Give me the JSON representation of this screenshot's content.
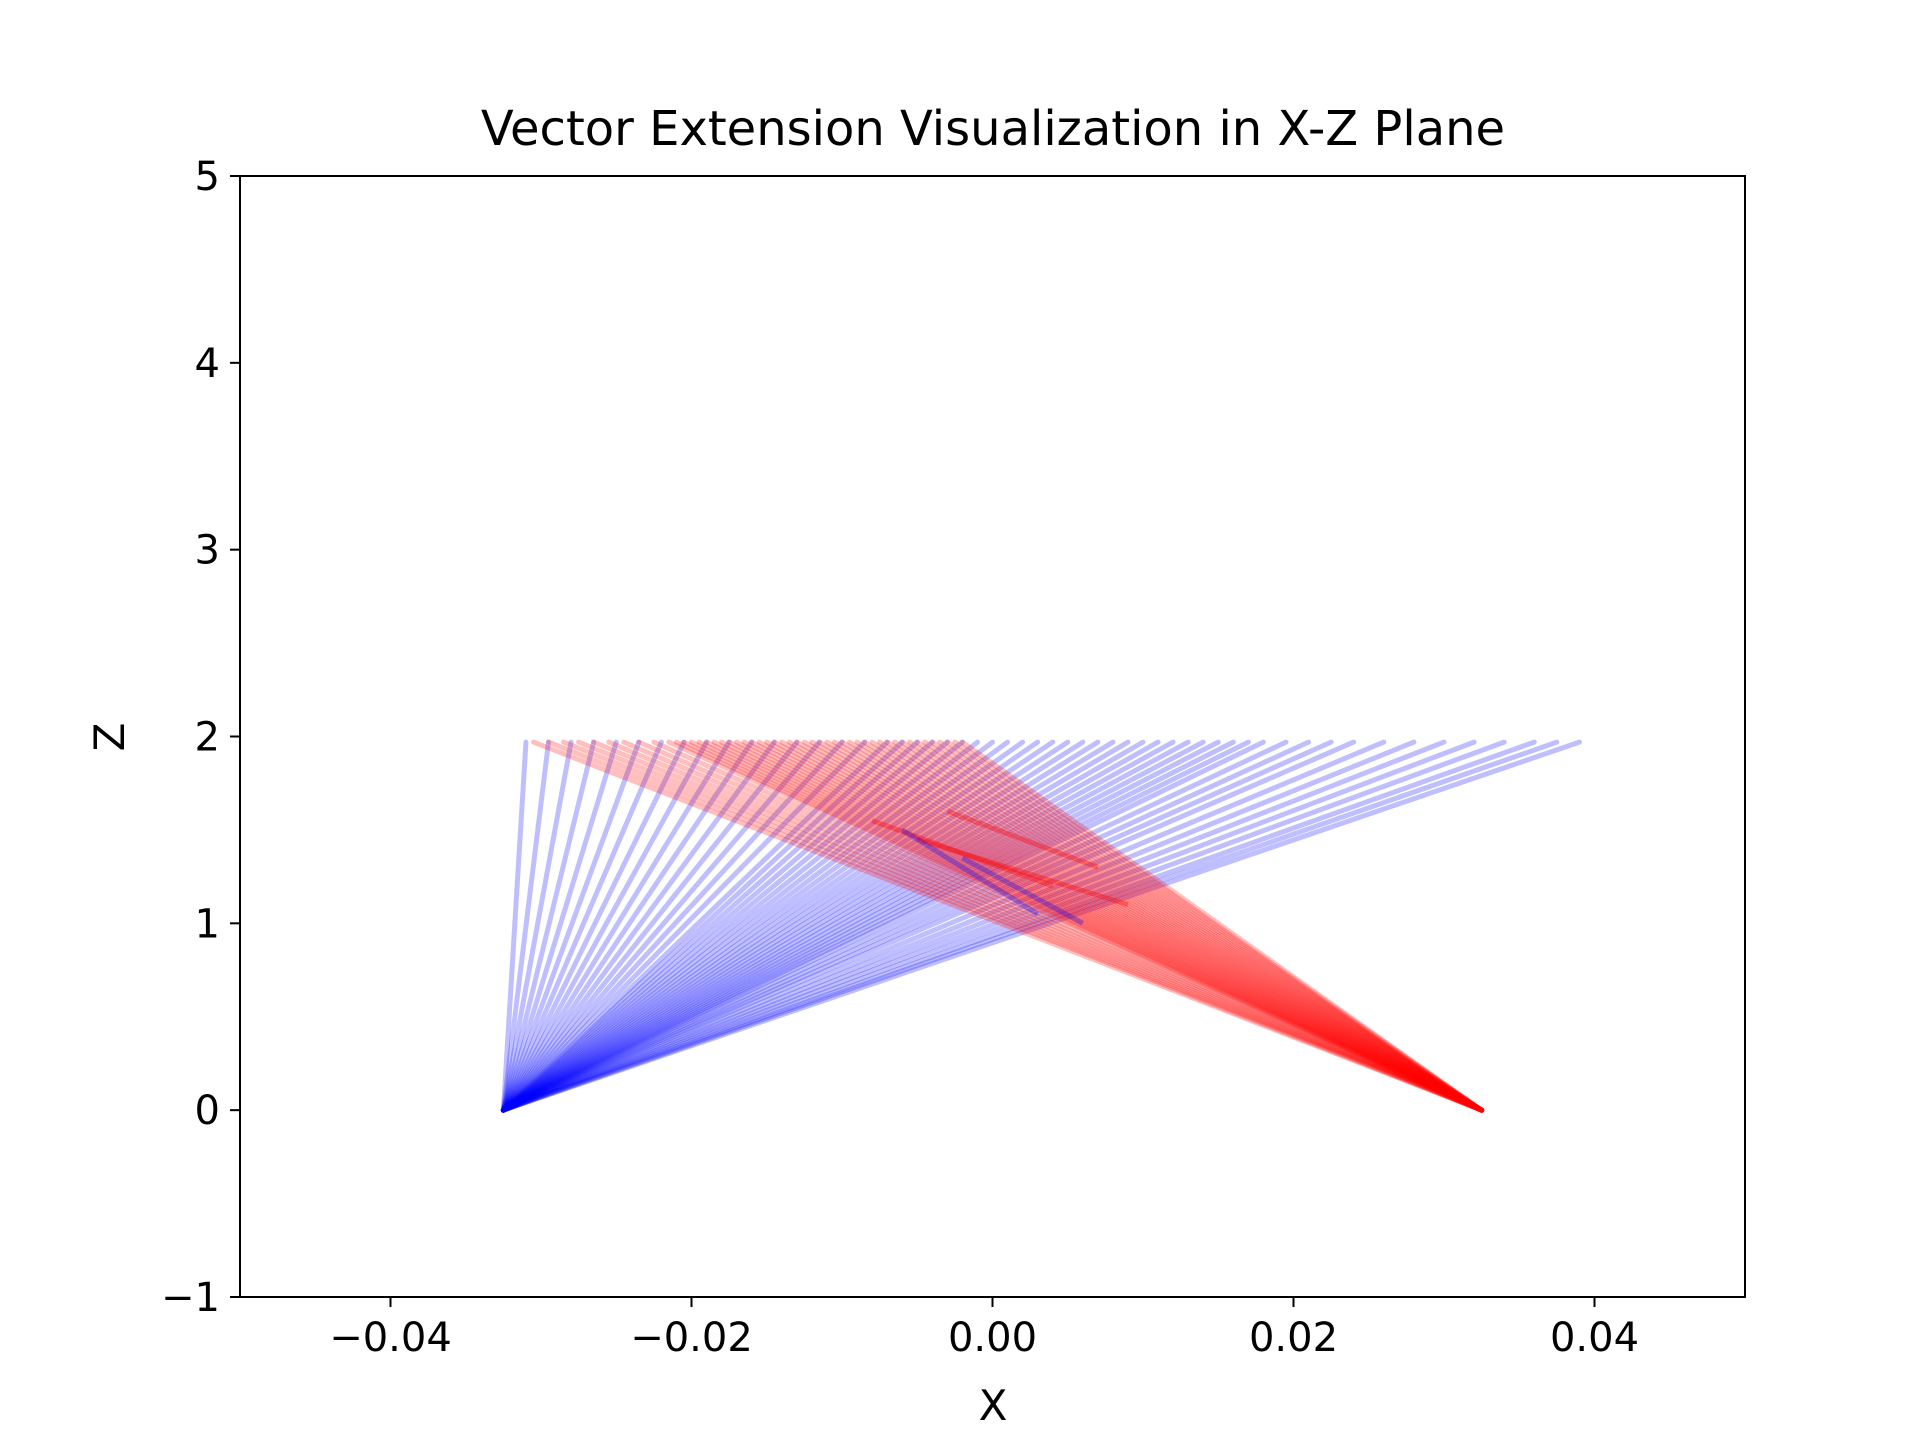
{
  "chart_data": {
    "type": "line",
    "title": "Vector Extension Visualization in X-Z Plane",
    "xlabel": "X",
    "ylabel": "Z",
    "xlim": [
      -0.05,
      0.05
    ],
    "ylim": [
      -1,
      5
    ],
    "x_ticks": [
      -0.04,
      -0.02,
      0.0,
      0.02,
      0.04
    ],
    "x_tick_labels": [
      "−0.04",
      "−0.02",
      "0.00",
      "0.02",
      "0.04"
    ],
    "y_ticks": [
      -1,
      0,
      1,
      2,
      3,
      4,
      5
    ],
    "y_tick_labels": [
      "−1",
      "0",
      "1",
      "2",
      "3",
      "4",
      "5"
    ],
    "grid": false,
    "series": [
      {
        "color": "#0000ff",
        "alpha": 0.25,
        "origin": [
          -0.0325,
          0.0
        ],
        "endpoints_z": 1.97,
        "endpoints_x": [
          -0.031,
          -0.0295,
          -0.028,
          -0.0265,
          -0.025,
          -0.0235,
          -0.022,
          -0.0205,
          -0.019,
          -0.0175,
          -0.016,
          -0.0145,
          -0.013,
          -0.0115,
          -0.01,
          -0.0085,
          -0.007,
          -0.006,
          -0.005,
          -0.004,
          -0.003,
          -0.002,
          -0.001,
          0.0,
          0.001,
          0.002,
          0.003,
          0.004,
          0.005,
          0.006,
          0.007,
          0.008,
          0.009,
          0.01,
          0.011,
          0.012,
          0.013,
          0.014,
          0.015,
          0.016,
          0.017,
          0.018,
          0.0195,
          0.021,
          0.0225,
          0.024,
          0.026,
          0.028,
          0.03,
          0.032,
          0.034,
          0.036,
          0.0375,
          0.039
        ]
      },
      {
        "color": "#ff0000",
        "alpha": 0.25,
        "origin": [
          0.0325,
          0.0
        ],
        "endpoints_z": 1.97,
        "endpoints_x": [
          -0.0305,
          -0.0295,
          -0.0285,
          -0.0275,
          -0.0265,
          -0.0255,
          -0.0245,
          -0.0235,
          -0.0225,
          -0.0215,
          -0.021,
          -0.0205,
          -0.02,
          -0.0195,
          -0.019,
          -0.0185,
          -0.018,
          -0.0175,
          -0.017,
          -0.0165,
          -0.016,
          -0.0155,
          -0.015,
          -0.0145,
          -0.014,
          -0.0135,
          -0.013,
          -0.0125,
          -0.012,
          -0.0115,
          -0.011,
          -0.0105,
          -0.01,
          -0.0095,
          -0.009,
          -0.0085,
          -0.008,
          -0.0075,
          -0.007,
          -0.0065,
          -0.006,
          -0.0055,
          -0.005,
          -0.0045,
          -0.004,
          -0.0035,
          -0.003,
          -0.0025,
          -0.002
        ]
      }
    ],
    "crossings": [
      {
        "color": "#ff0000",
        "alpha": 0.35,
        "segments": [
          [
            [
              -0.003,
              1.6
            ],
            [
              0.007,
              1.3
            ]
          ],
          [
            [
              -0.008,
              1.55
            ],
            [
              0.004,
              1.2
            ]
          ],
          [
            [
              -0.005,
              1.45
            ],
            [
              0.009,
              1.1
            ]
          ]
        ]
      },
      {
        "color": "#0000ff",
        "alpha": 0.3,
        "segments": [
          [
            [
              -0.006,
              1.5
            ],
            [
              0.003,
              1.05
            ]
          ],
          [
            [
              -0.002,
              1.35
            ],
            [
              0.006,
              1.0
            ]
          ]
        ]
      }
    ]
  }
}
